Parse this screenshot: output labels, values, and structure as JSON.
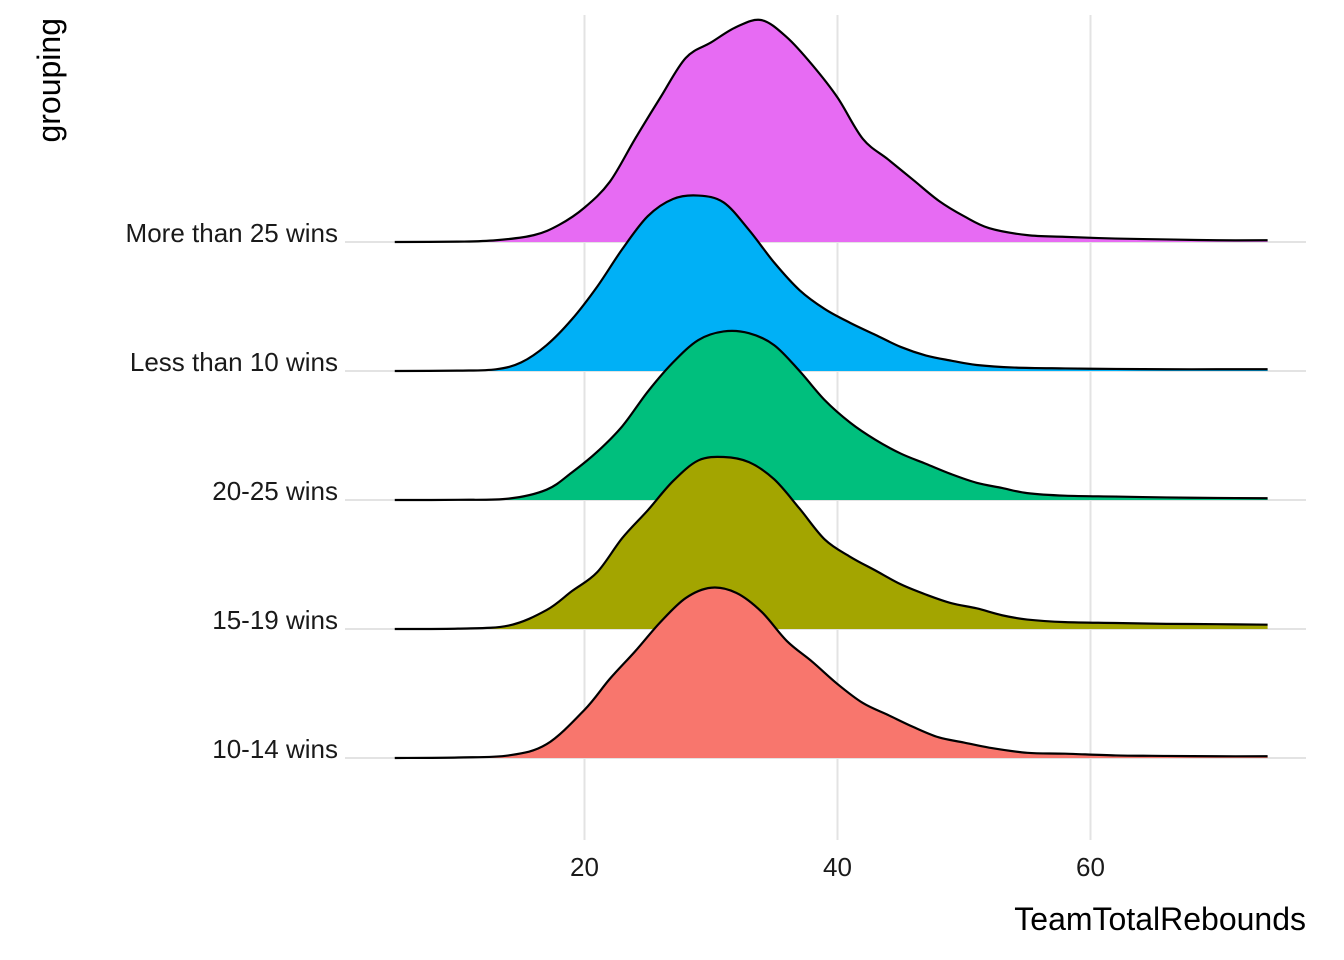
{
  "chart_data": {
    "type": "ridgeline",
    "xlabel": "TeamTotalRebounds",
    "ylabel": "grouping",
    "xlim": [
      5,
      74
    ],
    "x_ticks": [
      20,
      40,
      60
    ],
    "grid": true,
    "categories": [
      "10-14 wins",
      "15-19 wins",
      "20-25 wins",
      "Less than 10 wins",
      "More than 25 wins"
    ],
    "series": [
      {
        "name": "10-14 wins",
        "color": "#F8766D",
        "points": [
          [
            5,
            0
          ],
          [
            10,
            0.003
          ],
          [
            14,
            0.015
          ],
          [
            17,
            0.08
          ],
          [
            20,
            0.28
          ],
          [
            22,
            0.46
          ],
          [
            24,
            0.62
          ],
          [
            26,
            0.79
          ],
          [
            28,
            0.93
          ],
          [
            30,
            0.99
          ],
          [
            32,
            0.96
          ],
          [
            34,
            0.85
          ],
          [
            36,
            0.68
          ],
          [
            38,
            0.56
          ],
          [
            40,
            0.43
          ],
          [
            42,
            0.32
          ],
          [
            44,
            0.25
          ],
          [
            46,
            0.18
          ],
          [
            48,
            0.12
          ],
          [
            50,
            0.09
          ],
          [
            52,
            0.06
          ],
          [
            55,
            0.03
          ],
          [
            58,
            0.025
          ],
          [
            62,
            0.015
          ],
          [
            66,
            0.012
          ],
          [
            70,
            0.01
          ],
          [
            74,
            0.01
          ]
        ]
      },
      {
        "name": "15-19 wins",
        "color": "#A3A500",
        "points": [
          [
            5,
            0
          ],
          [
            10,
            0.002
          ],
          [
            14,
            0.02
          ],
          [
            17,
            0.11
          ],
          [
            19,
            0.22
          ],
          [
            21,
            0.33
          ],
          [
            23,
            0.53
          ],
          [
            25,
            0.69
          ],
          [
            27,
            0.86
          ],
          [
            29,
            0.98
          ],
          [
            31,
            1.0
          ],
          [
            33,
            0.97
          ],
          [
            35,
            0.87
          ],
          [
            37,
            0.7
          ],
          [
            39,
            0.52
          ],
          [
            41,
            0.42
          ],
          [
            43,
            0.34
          ],
          [
            45,
            0.26
          ],
          [
            47,
            0.2
          ],
          [
            49,
            0.15
          ],
          [
            51,
            0.12
          ],
          [
            53,
            0.08
          ],
          [
            55,
            0.055
          ],
          [
            58,
            0.04
          ],
          [
            62,
            0.035
          ],
          [
            66,
            0.03
          ],
          [
            70,
            0.028
          ],
          [
            74,
            0.025
          ]
        ]
      },
      {
        "name": "20-25 wins",
        "color": "#00BF7D",
        "points": [
          [
            5,
            0
          ],
          [
            10,
            0.001
          ],
          [
            14,
            0.008
          ],
          [
            17,
            0.06
          ],
          [
            19,
            0.16
          ],
          [
            21,
            0.28
          ],
          [
            23,
            0.43
          ],
          [
            25,
            0.63
          ],
          [
            27,
            0.8
          ],
          [
            29,
            0.93
          ],
          [
            31,
            0.98
          ],
          [
            33,
            0.97
          ],
          [
            35,
            0.9
          ],
          [
            37,
            0.75
          ],
          [
            39,
            0.58
          ],
          [
            41,
            0.45
          ],
          [
            43,
            0.35
          ],
          [
            45,
            0.27
          ],
          [
            47,
            0.21
          ],
          [
            49,
            0.15
          ],
          [
            51,
            0.1
          ],
          [
            53,
            0.07
          ],
          [
            55,
            0.04
          ],
          [
            58,
            0.025
          ],
          [
            62,
            0.02
          ],
          [
            66,
            0.015
          ],
          [
            70,
            0.012
          ],
          [
            74,
            0.01
          ]
        ]
      },
      {
        "name": "Less than 10 wins",
        "color": "#00B0F6",
        "points": [
          [
            5,
            0
          ],
          [
            10,
            0.002
          ],
          [
            13,
            0.01
          ],
          [
            15,
            0.05
          ],
          [
            17,
            0.15
          ],
          [
            19,
            0.3
          ],
          [
            21,
            0.49
          ],
          [
            23,
            0.71
          ],
          [
            25,
            0.9
          ],
          [
            27,
            1.0
          ],
          [
            29,
            1.02
          ],
          [
            31,
            0.98
          ],
          [
            33,
            0.82
          ],
          [
            35,
            0.63
          ],
          [
            37,
            0.47
          ],
          [
            39,
            0.36
          ],
          [
            41,
            0.28
          ],
          [
            43,
            0.21
          ],
          [
            45,
            0.14
          ],
          [
            47,
            0.09
          ],
          [
            49,
            0.06
          ],
          [
            51,
            0.035
          ],
          [
            54,
            0.02
          ],
          [
            58,
            0.015
          ],
          [
            62,
            0.012
          ],
          [
            66,
            0.01
          ],
          [
            70,
            0.01
          ],
          [
            74,
            0.01
          ]
        ]
      },
      {
        "name": "More than 25 wins",
        "color": "#E76BF3",
        "points": [
          [
            5,
            0
          ],
          [
            10,
            0.002
          ],
          [
            13,
            0.01
          ],
          [
            16,
            0.04
          ],
          [
            18,
            0.1
          ],
          [
            20,
            0.2
          ],
          [
            22,
            0.35
          ],
          [
            24,
            0.6
          ],
          [
            26,
            0.84
          ],
          [
            28,
            1.07
          ],
          [
            30,
            1.16
          ],
          [
            32,
            1.25
          ],
          [
            34,
            1.29
          ],
          [
            36,
            1.19
          ],
          [
            38,
            1.03
          ],
          [
            40,
            0.84
          ],
          [
            42,
            0.6
          ],
          [
            44,
            0.48
          ],
          [
            46,
            0.36
          ],
          [
            48,
            0.24
          ],
          [
            50,
            0.15
          ],
          [
            52,
            0.08
          ],
          [
            55,
            0.04
          ],
          [
            58,
            0.03
          ],
          [
            62,
            0.02
          ],
          [
            66,
            0.015
          ],
          [
            70,
            0.01
          ],
          [
            74,
            0.01
          ]
        ]
      }
    ]
  }
}
